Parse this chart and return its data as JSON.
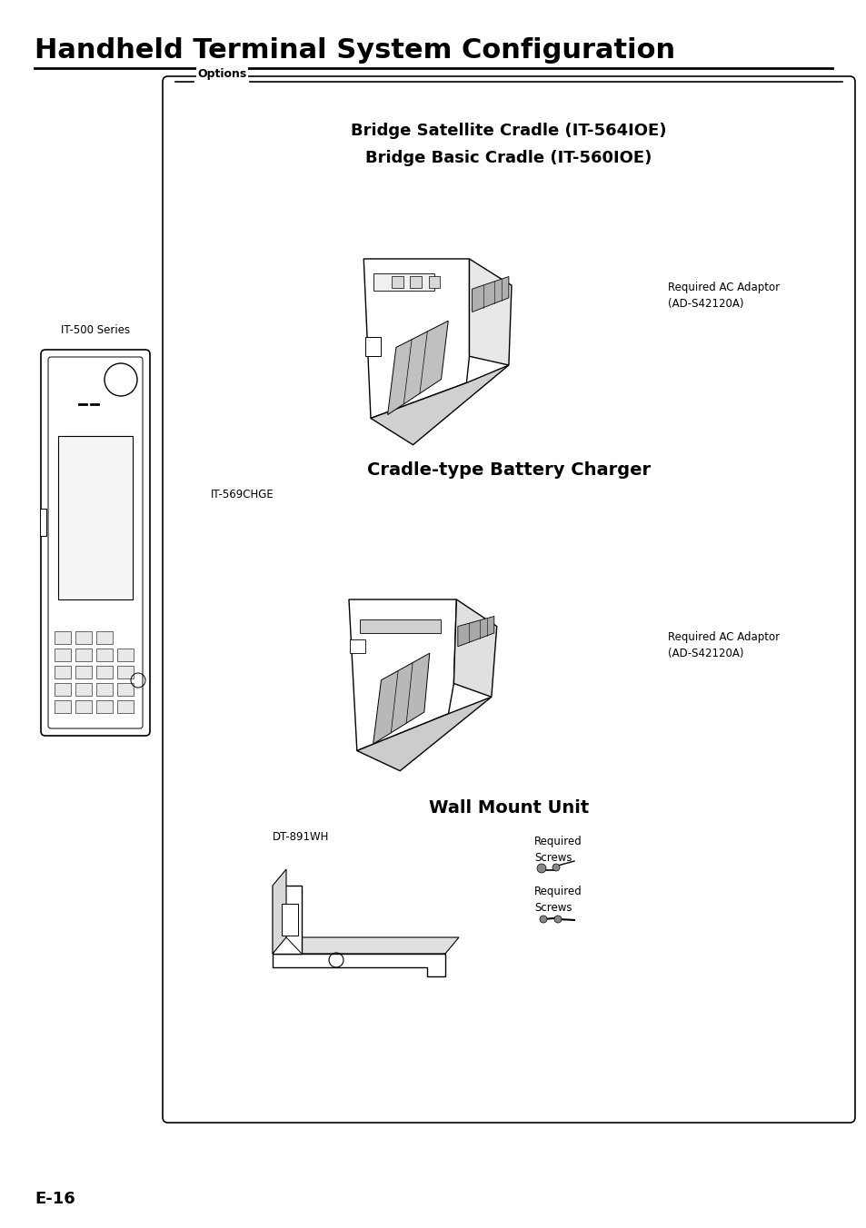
{
  "title": "Handheld Terminal System Configuration",
  "page_number": "E-16",
  "background_color": "#ffffff",
  "title_fontsize": 22,
  "options_label": "Options",
  "section1_line1": "Bridge Satellite Cradle (IT-564IOE)",
  "section1_line2": "Bridge Basic Cradle (IT-560IOE)",
  "section1_note1": "Required AC Adaptor",
  "section1_note2": "(AD-S42120A)",
  "section2_title": "Cradle-type Battery Charger",
  "section2_model": "IT-569CHGE",
  "section2_note1": "Required AC Adaptor",
  "section2_note2": "(AD-S42120A)",
  "section3_title": "Wall Mount Unit",
  "section3_model": "DT-891WH",
  "section3_note1a": "Required",
  "section3_note1b": "Screws",
  "section3_note2a": "Required",
  "section3_note2b": "Screws",
  "left_label": "IT-500 Series",
  "font_color": "#000000"
}
